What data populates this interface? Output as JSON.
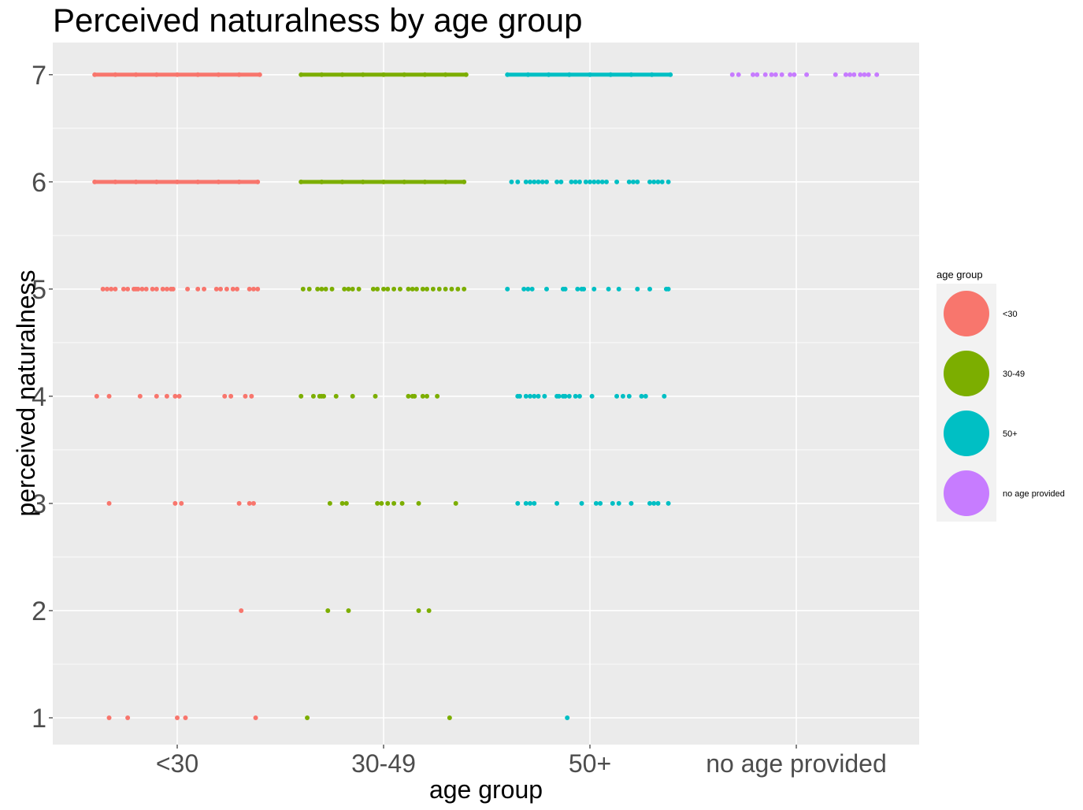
{
  "chart_data": {
    "type": "scatter",
    "title": "Perceived naturalness by age group",
    "xlabel": "age group",
    "ylabel": "perceived naturalness",
    "categories": [
      "<30",
      "30-49",
      "50+",
      "no age provided"
    ],
    "ylim": [
      0.75,
      7.3
    ],
    "yticks": [
      1,
      2,
      3,
      4,
      5,
      6,
      7
    ],
    "jitter": 0.4,
    "grid": true,
    "legend": {
      "title": "age group",
      "placement": "right"
    },
    "series": [
      {
        "name": "<30",
        "color": "#F8766D",
        "points": [
          {
            "x": -0.4,
            "y": 7
          },
          {
            "x": -0.3,
            "y": 7
          },
          {
            "x": -0.2,
            "y": 7
          },
          {
            "x": -0.1,
            "y": 7
          },
          {
            "x": 0.0,
            "y": 7
          },
          {
            "x": 0.1,
            "y": 7
          },
          {
            "x": 0.2,
            "y": 7
          },
          {
            "x": 0.3,
            "y": 7
          },
          {
            "x": 0.4,
            "y": 7
          },
          {
            "x": -0.4,
            "y": 6
          },
          {
            "x": -0.3,
            "y": 6
          },
          {
            "x": -0.2,
            "y": 6
          },
          {
            "x": -0.1,
            "y": 6
          },
          {
            "x": 0.0,
            "y": 6
          },
          {
            "x": 0.1,
            "y": 6
          },
          {
            "x": 0.2,
            "y": 6
          },
          {
            "x": 0.3,
            "y": 6
          },
          {
            "x": 0.39,
            "y": 6
          },
          {
            "x": -0.36,
            "y": 5
          },
          {
            "x": -0.34,
            "y": 5
          },
          {
            "x": -0.32,
            "y": 5
          },
          {
            "x": -0.3,
            "y": 5
          },
          {
            "x": -0.26,
            "y": 5
          },
          {
            "x": -0.24,
            "y": 5
          },
          {
            "x": -0.21,
            "y": 5
          },
          {
            "x": -0.2,
            "y": 5
          },
          {
            "x": -0.19,
            "y": 5
          },
          {
            "x": -0.17,
            "y": 5
          },
          {
            "x": -0.15,
            "y": 5
          },
          {
            "x": -0.12,
            "y": 5
          },
          {
            "x": -0.1,
            "y": 5
          },
          {
            "x": -0.07,
            "y": 5
          },
          {
            "x": -0.05,
            "y": 5
          },
          {
            "x": -0.03,
            "y": 5
          },
          {
            "x": -0.02,
            "y": 5
          },
          {
            "x": 0.05,
            "y": 5
          },
          {
            "x": 0.1,
            "y": 5
          },
          {
            "x": 0.13,
            "y": 5
          },
          {
            "x": 0.19,
            "y": 5
          },
          {
            "x": 0.21,
            "y": 5
          },
          {
            "x": 0.24,
            "y": 5
          },
          {
            "x": 0.27,
            "y": 5
          },
          {
            "x": 0.29,
            "y": 5
          },
          {
            "x": 0.35,
            "y": 5
          },
          {
            "x": 0.37,
            "y": 5
          },
          {
            "x": 0.39,
            "y": 5
          },
          {
            "x": -0.39,
            "y": 4
          },
          {
            "x": -0.33,
            "y": 4
          },
          {
            "x": -0.18,
            "y": 4
          },
          {
            "x": -0.1,
            "y": 4
          },
          {
            "x": -0.05,
            "y": 4
          },
          {
            "x": -0.01,
            "y": 4
          },
          {
            "x": 0.01,
            "y": 4
          },
          {
            "x": 0.23,
            "y": 4
          },
          {
            "x": 0.26,
            "y": 4
          },
          {
            "x": 0.33,
            "y": 4
          },
          {
            "x": 0.36,
            "y": 4
          },
          {
            "x": -0.33,
            "y": 3
          },
          {
            "x": -0.01,
            "y": 3
          },
          {
            "x": 0.02,
            "y": 3
          },
          {
            "x": 0.3,
            "y": 3
          },
          {
            "x": 0.35,
            "y": 3
          },
          {
            "x": 0.37,
            "y": 3
          },
          {
            "x": 0.31,
            "y": 2
          },
          {
            "x": -0.33,
            "y": 1
          },
          {
            "x": -0.24,
            "y": 1
          },
          {
            "x": 0.0,
            "y": 1
          },
          {
            "x": 0.04,
            "y": 1
          },
          {
            "x": 0.38,
            "y": 1
          }
        ]
      },
      {
        "name": "30-49",
        "color": "#7CAE00",
        "points": [
          {
            "x": -0.4,
            "y": 7
          },
          {
            "x": -0.3,
            "y": 7
          },
          {
            "x": -0.2,
            "y": 7
          },
          {
            "x": -0.1,
            "y": 7
          },
          {
            "x": 0.0,
            "y": 7
          },
          {
            "x": 0.1,
            "y": 7
          },
          {
            "x": 0.2,
            "y": 7
          },
          {
            "x": 0.3,
            "y": 7
          },
          {
            "x": 0.4,
            "y": 7
          },
          {
            "x": -0.4,
            "y": 6
          },
          {
            "x": -0.3,
            "y": 6
          },
          {
            "x": -0.2,
            "y": 6
          },
          {
            "x": -0.1,
            "y": 6
          },
          {
            "x": 0.0,
            "y": 6
          },
          {
            "x": 0.1,
            "y": 6
          },
          {
            "x": 0.2,
            "y": 6
          },
          {
            "x": 0.3,
            "y": 6
          },
          {
            "x": 0.39,
            "y": 6
          },
          {
            "x": -0.39,
            "y": 5
          },
          {
            "x": -0.36,
            "y": 5
          },
          {
            "x": -0.32,
            "y": 5
          },
          {
            "x": -0.3,
            "y": 5
          },
          {
            "x": -0.28,
            "y": 5
          },
          {
            "x": -0.25,
            "y": 5
          },
          {
            "x": -0.19,
            "y": 5
          },
          {
            "x": -0.17,
            "y": 5
          },
          {
            "x": -0.15,
            "y": 5
          },
          {
            "x": -0.12,
            "y": 5
          },
          {
            "x": -0.05,
            "y": 5
          },
          {
            "x": -0.03,
            "y": 5
          },
          {
            "x": 0.0,
            "y": 5
          },
          {
            "x": 0.02,
            "y": 5
          },
          {
            "x": 0.05,
            "y": 5
          },
          {
            "x": 0.08,
            "y": 5
          },
          {
            "x": 0.12,
            "y": 5
          },
          {
            "x": 0.14,
            "y": 5
          },
          {
            "x": 0.16,
            "y": 5
          },
          {
            "x": 0.19,
            "y": 5
          },
          {
            "x": 0.21,
            "y": 5
          },
          {
            "x": 0.24,
            "y": 5
          },
          {
            "x": 0.27,
            "y": 5
          },
          {
            "x": 0.3,
            "y": 5
          },
          {
            "x": 0.33,
            "y": 5
          },
          {
            "x": 0.36,
            "y": 5
          },
          {
            "x": 0.39,
            "y": 5
          },
          {
            "x": -0.4,
            "y": 4
          },
          {
            "x": -0.34,
            "y": 4
          },
          {
            "x": -0.31,
            "y": 4
          },
          {
            "x": -0.3,
            "y": 4
          },
          {
            "x": -0.29,
            "y": 4
          },
          {
            "x": -0.23,
            "y": 4
          },
          {
            "x": -0.15,
            "y": 4
          },
          {
            "x": -0.04,
            "y": 4
          },
          {
            "x": 0.12,
            "y": 4
          },
          {
            "x": 0.14,
            "y": 4
          },
          {
            "x": 0.15,
            "y": 4
          },
          {
            "x": 0.19,
            "y": 4
          },
          {
            "x": 0.21,
            "y": 4
          },
          {
            "x": 0.26,
            "y": 4
          },
          {
            "x": -0.26,
            "y": 3
          },
          {
            "x": -0.2,
            "y": 3
          },
          {
            "x": -0.18,
            "y": 3
          },
          {
            "x": -0.03,
            "y": 3
          },
          {
            "x": -0.01,
            "y": 3
          },
          {
            "x": 0.02,
            "y": 3
          },
          {
            "x": 0.05,
            "y": 3
          },
          {
            "x": 0.09,
            "y": 3
          },
          {
            "x": 0.17,
            "y": 3
          },
          {
            "x": 0.35,
            "y": 3
          },
          {
            "x": -0.27,
            "y": 2
          },
          {
            "x": -0.17,
            "y": 2
          },
          {
            "x": 0.17,
            "y": 2
          },
          {
            "x": 0.22,
            "y": 2
          },
          {
            "x": -0.37,
            "y": 1
          },
          {
            "x": 0.32,
            "y": 1
          }
        ]
      },
      {
        "name": "50+",
        "color": "#00BFC4",
        "points": [
          {
            "x": -0.4,
            "y": 7
          },
          {
            "x": -0.3,
            "y": 7
          },
          {
            "x": -0.2,
            "y": 7
          },
          {
            "x": -0.1,
            "y": 7
          },
          {
            "x": 0.0,
            "y": 7
          },
          {
            "x": 0.1,
            "y": 7
          },
          {
            "x": 0.2,
            "y": 7
          },
          {
            "x": 0.3,
            "y": 7
          },
          {
            "x": 0.39,
            "y": 7
          },
          {
            "x": -0.38,
            "y": 6
          },
          {
            "x": -0.35,
            "y": 6
          },
          {
            "x": -0.31,
            "y": 6
          },
          {
            "x": -0.29,
            "y": 6
          },
          {
            "x": -0.27,
            "y": 6
          },
          {
            "x": -0.25,
            "y": 6
          },
          {
            "x": -0.23,
            "y": 6
          },
          {
            "x": -0.21,
            "y": 6
          },
          {
            "x": -0.16,
            "y": 6
          },
          {
            "x": -0.14,
            "y": 6
          },
          {
            "x": -0.09,
            "y": 6
          },
          {
            "x": -0.07,
            "y": 6
          },
          {
            "x": -0.05,
            "y": 6
          },
          {
            "x": -0.02,
            "y": 6
          },
          {
            "x": 0.0,
            "y": 6
          },
          {
            "x": 0.02,
            "y": 6
          },
          {
            "x": 0.04,
            "y": 6
          },
          {
            "x": 0.06,
            "y": 6
          },
          {
            "x": 0.08,
            "y": 6
          },
          {
            "x": 0.13,
            "y": 6
          },
          {
            "x": 0.19,
            "y": 6
          },
          {
            "x": 0.21,
            "y": 6
          },
          {
            "x": 0.23,
            "y": 6
          },
          {
            "x": 0.29,
            "y": 6
          },
          {
            "x": 0.31,
            "y": 6
          },
          {
            "x": 0.33,
            "y": 6
          },
          {
            "x": 0.35,
            "y": 6
          },
          {
            "x": 0.38,
            "y": 6
          },
          {
            "x": -0.4,
            "y": 5
          },
          {
            "x": -0.32,
            "y": 5
          },
          {
            "x": -0.3,
            "y": 5
          },
          {
            "x": -0.28,
            "y": 5
          },
          {
            "x": -0.21,
            "y": 5
          },
          {
            "x": -0.13,
            "y": 5
          },
          {
            "x": -0.12,
            "y": 5
          },
          {
            "x": -0.06,
            "y": 5
          },
          {
            "x": -0.04,
            "y": 5
          },
          {
            "x": -0.03,
            "y": 5
          },
          {
            "x": 0.02,
            "y": 5
          },
          {
            "x": 0.09,
            "y": 5
          },
          {
            "x": 0.14,
            "y": 5
          },
          {
            "x": 0.23,
            "y": 5
          },
          {
            "x": 0.29,
            "y": 5
          },
          {
            "x": 0.37,
            "y": 5
          },
          {
            "x": 0.38,
            "y": 5
          },
          {
            "x": -0.35,
            "y": 4
          },
          {
            "x": -0.34,
            "y": 4
          },
          {
            "x": -0.31,
            "y": 4
          },
          {
            "x": -0.29,
            "y": 4
          },
          {
            "x": -0.27,
            "y": 4
          },
          {
            "x": -0.25,
            "y": 4
          },
          {
            "x": -0.22,
            "y": 4
          },
          {
            "x": -0.16,
            "y": 4
          },
          {
            "x": -0.15,
            "y": 4
          },
          {
            "x": -0.13,
            "y": 4
          },
          {
            "x": -0.12,
            "y": 4
          },
          {
            "x": -0.1,
            "y": 4
          },
          {
            "x": -0.07,
            "y": 4
          },
          {
            "x": -0.05,
            "y": 4
          },
          {
            "x": 0.01,
            "y": 4
          },
          {
            "x": 0.13,
            "y": 4
          },
          {
            "x": 0.16,
            "y": 4
          },
          {
            "x": 0.19,
            "y": 4
          },
          {
            "x": 0.25,
            "y": 4
          },
          {
            "x": 0.27,
            "y": 4
          },
          {
            "x": 0.36,
            "y": 4
          },
          {
            "x": -0.35,
            "y": 3
          },
          {
            "x": -0.31,
            "y": 3
          },
          {
            "x": -0.29,
            "y": 3
          },
          {
            "x": -0.27,
            "y": 3
          },
          {
            "x": -0.16,
            "y": 3
          },
          {
            "x": -0.04,
            "y": 3
          },
          {
            "x": 0.03,
            "y": 3
          },
          {
            "x": 0.05,
            "y": 3
          },
          {
            "x": 0.11,
            "y": 3
          },
          {
            "x": 0.14,
            "y": 3
          },
          {
            "x": 0.2,
            "y": 3
          },
          {
            "x": 0.29,
            "y": 3
          },
          {
            "x": 0.31,
            "y": 3
          },
          {
            "x": 0.33,
            "y": 3
          },
          {
            "x": 0.38,
            "y": 3
          },
          {
            "x": -0.11,
            "y": 1
          }
        ]
      },
      {
        "name": "no age provided",
        "color": "#C77CFF",
        "points": [
          {
            "x": -0.31,
            "y": 7
          },
          {
            "x": -0.28,
            "y": 7
          },
          {
            "x": -0.21,
            "y": 7
          },
          {
            "x": -0.19,
            "y": 7
          },
          {
            "x": -0.15,
            "y": 7
          },
          {
            "x": -0.12,
            "y": 7
          },
          {
            "x": -0.1,
            "y": 7
          },
          {
            "x": -0.07,
            "y": 7
          },
          {
            "x": -0.03,
            "y": 7
          },
          {
            "x": -0.01,
            "y": 7
          },
          {
            "x": 0.05,
            "y": 7
          },
          {
            "x": 0.19,
            "y": 7
          },
          {
            "x": 0.24,
            "y": 7
          },
          {
            "x": 0.26,
            "y": 7
          },
          {
            "x": 0.28,
            "y": 7
          },
          {
            "x": 0.31,
            "y": 7
          },
          {
            "x": 0.33,
            "y": 7
          },
          {
            "x": 0.35,
            "y": 7
          },
          {
            "x": 0.39,
            "y": 7
          }
        ]
      }
    ]
  }
}
